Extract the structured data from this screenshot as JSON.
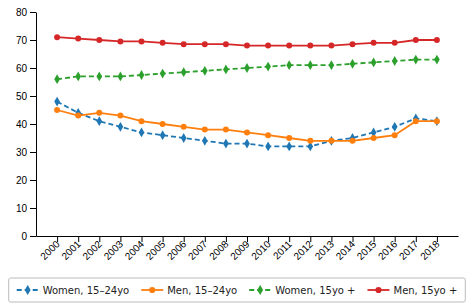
{
  "chart_data": {
    "type": "line",
    "x": [
      2000,
      2001,
      2002,
      2003,
      2004,
      2005,
      2006,
      2007,
      2008,
      2009,
      2010,
      2011,
      2012,
      2013,
      2014,
      2015,
      2016,
      2017,
      2018
    ],
    "xlim": [
      1999,
      2019
    ],
    "xticks": [
      2000,
      2001,
      2002,
      2003,
      2004,
      2005,
      2006,
      2007,
      2008,
      2009,
      2010,
      2011,
      2012,
      2013,
      2014,
      2015,
      2016,
      2017,
      2018
    ],
    "ylim": [
      0,
      80
    ],
    "yticks": [
      0,
      10,
      20,
      30,
      40,
      50,
      60,
      70,
      80
    ],
    "grid": false,
    "legend": "bottom",
    "series": [
      {
        "name": "Women, 15–24yo",
        "marker": "diamond",
        "line_style": "dashed",
        "values": [
          48,
          44,
          41,
          39,
          37,
          36,
          35,
          34,
          33,
          33,
          32,
          32,
          32,
          34,
          35,
          37,
          39,
          42,
          41
        ]
      },
      {
        "name": "Men, 15–24yo",
        "marker": "circle",
        "line_style": "solid",
        "values": [
          45,
          43,
          44,
          43,
          41,
          40,
          39,
          38,
          38,
          37,
          36,
          35,
          34,
          34,
          34,
          35,
          36,
          41,
          41
        ]
      },
      {
        "name": "Women, 15yo +",
        "marker": "diamond",
        "line_style": "dashed",
        "values": [
          56,
          57,
          57,
          57,
          57.5,
          58,
          58.5,
          59,
          59.5,
          60,
          60.5,
          61,
          61,
          61,
          61.5,
          62,
          62.5,
          63,
          63
        ]
      },
      {
        "name": "Men, 15yo +",
        "marker": "circle",
        "line_style": "solid",
        "values": [
          71,
          70.5,
          70,
          69.5,
          69.5,
          69,
          68.5,
          68.5,
          68.5,
          68,
          68,
          68,
          68,
          68,
          68.5,
          69,
          69,
          70,
          70
        ]
      }
    ]
  }
}
